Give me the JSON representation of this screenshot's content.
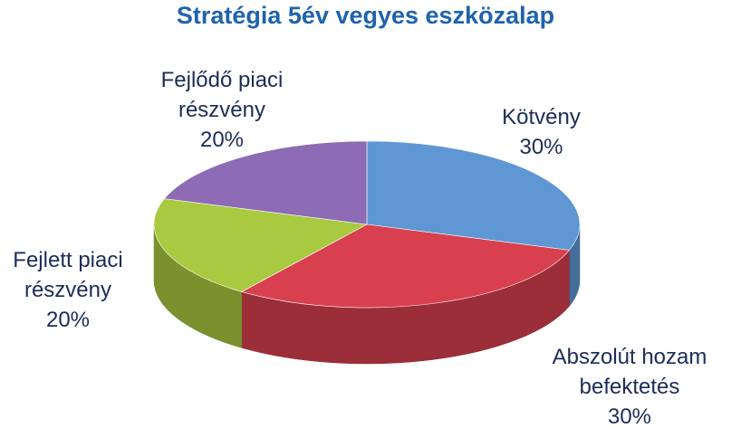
{
  "chart_data": {
    "type": "pie3d",
    "title": "Stratégia 5év vegyes eszközalap",
    "categories": [
      "Kötvény",
      "Abszolút hozam befektetés",
      "Fejlett piaci részvény",
      "Fejlődő piaci részvény"
    ],
    "values": [
      30,
      30,
      20,
      20
    ],
    "value_labels": [
      "30%",
      "30%",
      "20%",
      "20%"
    ],
    "colors": [
      "#5f97d4",
      "#d9404f",
      "#a9c940",
      "#8d6bb5"
    ]
  }
}
